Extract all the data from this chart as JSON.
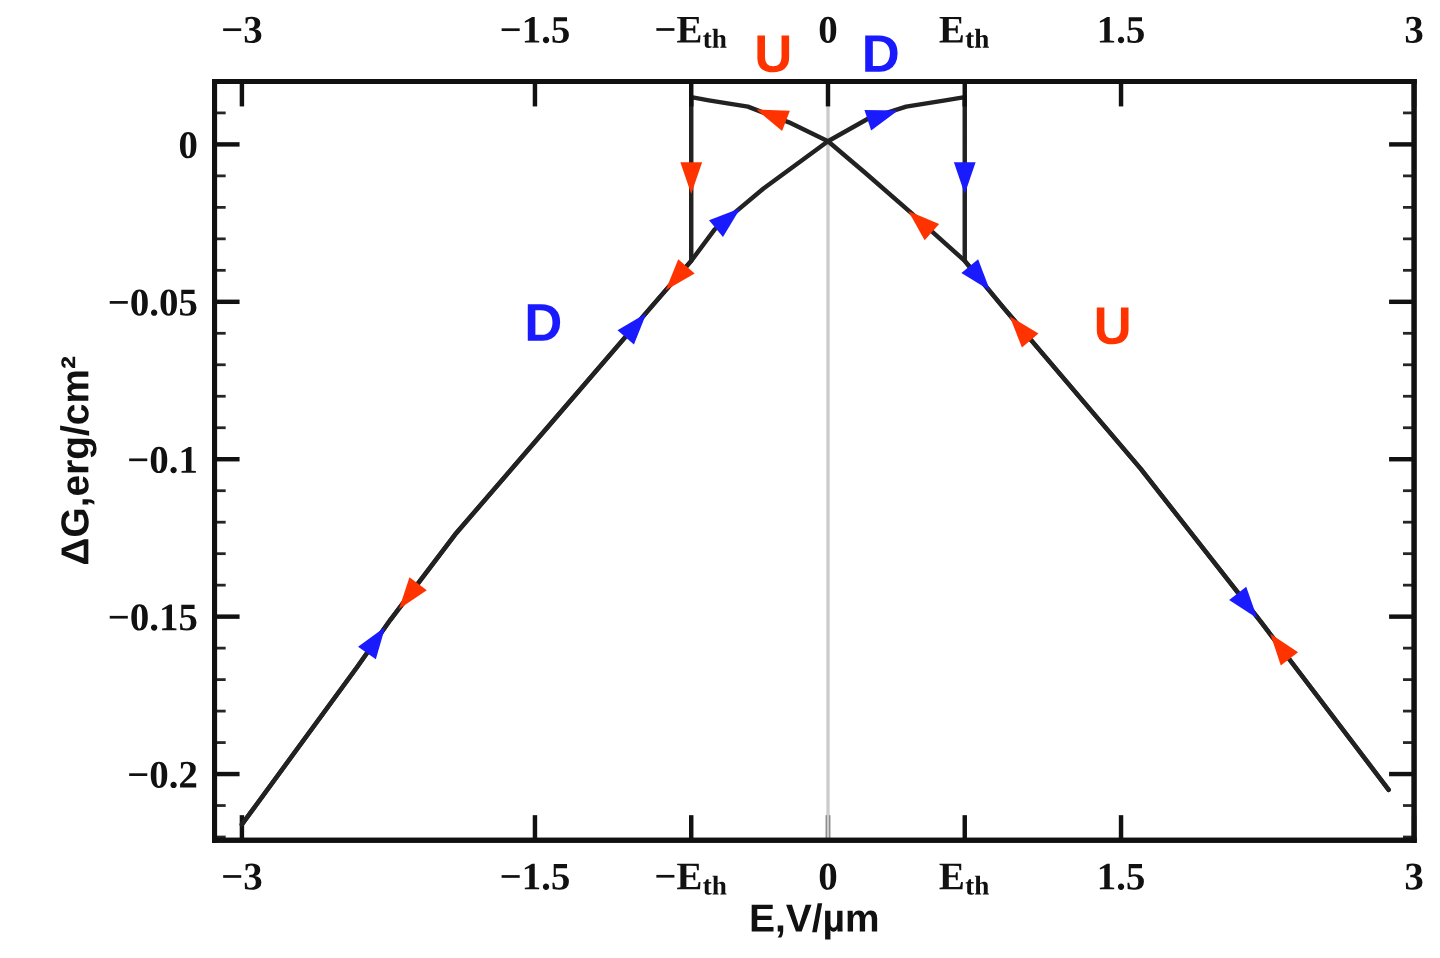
{
  "chart_data": {
    "type": "line",
    "xlabel": "E,V/µm",
    "ylabel": "ΔG,erg/cm²",
    "xlim": [
      -3.14,
      3.0
    ],
    "xticks": [
      {
        "value": -3,
        "label": "−3"
      },
      {
        "value": -1.5,
        "label": "−1.5"
      },
      {
        "value": -0.7,
        "label": "−E$_{th}$"
      },
      0,
      {
        "value": 0.7,
        "label": "E$_{th}$"
      },
      1.5,
      3
    ],
    "x2lim": [
      -3.14,
      3.0
    ],
    "x2ticks": [
      {
        "value": -3,
        "label": "−3"
      },
      {
        "value": -1.5,
        "label": "−1.5"
      },
      {
        "value": -0.7,
        "label": "−E$_{th}$"
      },
      0,
      {
        "value": 0.7,
        "label": "E$_{th}$"
      },
      1.5,
      3
    ],
    "ylim": [
      -0.221,
      0.02
    ],
    "yticks": [
      0,
      {
        "value": -0.05,
        "label": "−0.05"
      },
      {
        "value": -0.1,
        "label": "−0.1"
      },
      {
        "value": -0.15,
        "label": "−0.15"
      },
      {
        "value": -0.2,
        "label": "−0.2"
      }
    ],
    "ref_lines": [
      {
        "axis": "x",
        "value": 0,
        "color": "#cccccc"
      }
    ],
    "series": [
      {
        "color": "#222222",
        "x": [
          -3.0,
          -2.41,
          -2.24,
          -1.91,
          -1.41,
          -0.91,
          -0.7,
          -0.58,
          -0.33,
          0,
          0.2,
          0.4,
          0.6,
          0.7,
          0.7,
          0.9,
          1.6,
          2.22,
          2.87
        ],
        "values": [
          -0.216,
          -0.166,
          -0.151,
          -0.124,
          -0.088,
          -0.052,
          -0.037,
          -0.027,
          -0.014,
          0.001,
          0.008,
          0.012,
          0.014,
          0.015,
          -0.037,
          -0.052,
          -0.103,
          -0.152,
          -0.205
        ]
      },
      {
        "color": "#222222",
        "x": [
          2.87,
          2.22,
          1.6,
          0.9,
          0.7,
          0.43,
          0.19,
          0,
          -0.2,
          -0.41,
          -0.61,
          -0.7,
          -0.7,
          -0.91,
          -1.41,
          -1.91,
          -2.24,
          -2.41,
          -3.0
        ],
        "values": [
          -0.205,
          -0.152,
          -0.103,
          -0.052,
          -0.037,
          -0.022,
          -0.009,
          0.001,
          0.007,
          0.012,
          0.014,
          0.015,
          -0.037,
          -0.052,
          -0.088,
          -0.124,
          -0.151,
          -0.166,
          -0.216
        ]
      },
      {
        "type": "scatter",
        "marker": "triangle",
        "color": "#1a1aff",
        "x": [
          -2.32,
          -0.99,
          -0.52,
          0.27,
          0.7,
          0.77,
          2.14
        ],
        "values": [
          -0.158,
          -0.058,
          -0.024,
          0.009,
          -0.01,
          -0.042,
          -0.146
        ]
      },
      {
        "type": "scatter",
        "marker": "triangle",
        "color": "#ff3300",
        "x": [
          2.32,
          0.99,
          0.48,
          -0.28,
          -0.7,
          -0.77,
          -2.14
        ],
        "values": [
          -0.16,
          -0.059,
          -0.025,
          0.009,
          -0.01,
          -0.042,
          -0.143
        ]
      }
    ],
    "annotations": [
      {
        "text": "U",
        "x": -0.28,
        "y": 0.009
      },
      {
        "text": "D",
        "x": 0.27,
        "y": 0.009
      },
      {
        "text": "D",
        "x": -0.99,
        "y": -0.058
      },
      {
        "text": "U",
        "x": 0.99,
        "y": -0.059
      }
    ]
  }
}
